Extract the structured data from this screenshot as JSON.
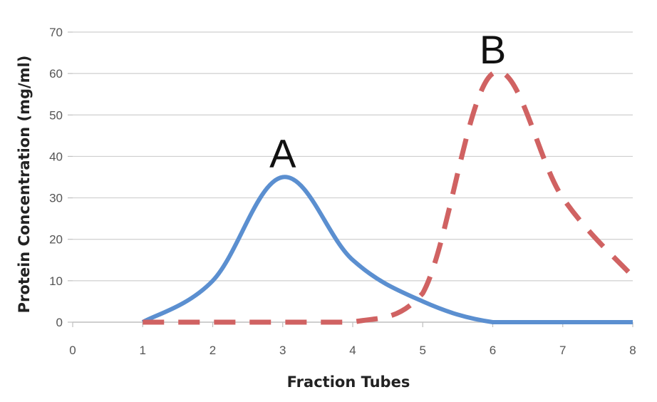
{
  "chart_data": {
    "type": "line",
    "title": "",
    "xlabel": "Fraction Tubes",
    "ylabel": "Protein Concentration (mg/ml)",
    "xlim": [
      0,
      8
    ],
    "ylim": [
      0,
      70
    ],
    "x_ticks": [
      0,
      1,
      2,
      3,
      4,
      5,
      6,
      7,
      8
    ],
    "y_ticks": [
      0,
      10,
      20,
      30,
      40,
      50,
      60,
      70
    ],
    "grid": "horizontal",
    "legend": "none",
    "series": [
      {
        "label": "A",
        "style": "solid",
        "color": "#5b8fd0",
        "x": [
          1,
          2,
          3,
          4,
          5,
          6,
          7,
          8
        ],
        "y": [
          0,
          10,
          35,
          15,
          5,
          0,
          0,
          0
        ]
      },
      {
        "label": "B",
        "style": "dashed",
        "color": "#d06262",
        "x": [
          1,
          2,
          3,
          4,
          5,
          6,
          7,
          8
        ],
        "y": [
          0,
          0,
          0,
          0,
          7,
          60,
          30,
          11
        ]
      }
    ]
  }
}
